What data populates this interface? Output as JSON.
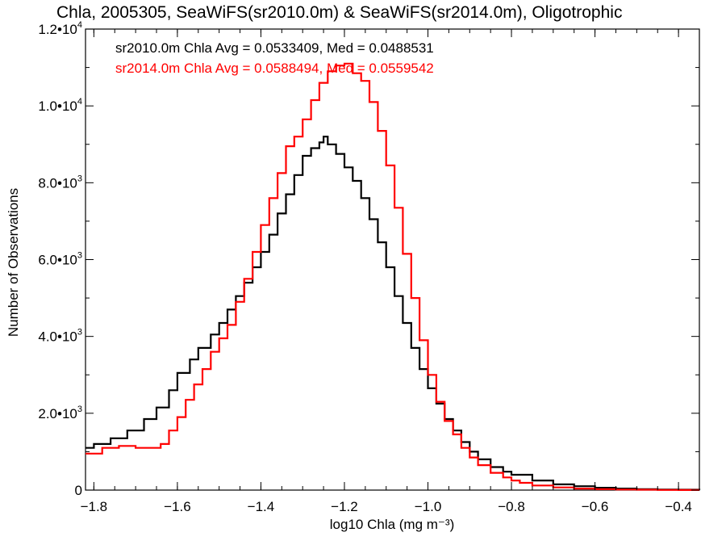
{
  "chart_data": {
    "type": "line",
    "title": "Chla, 2005305, SeaWiFS(sr2010.0m) & SeaWiFS(sr2014.0m), Oligotrophic",
    "xlabel": "log10 Chla (mg m⁻³)",
    "ylabel": "Number of Observations",
    "xlim": [
      -1.82,
      -0.35
    ],
    "ylim": [
      0,
      12000
    ],
    "grid": false,
    "x_ticks": [
      -1.8,
      -1.6,
      -1.4,
      -1.2,
      -1.0,
      -0.8,
      -0.6,
      -0.4
    ],
    "x_tick_labels": [
      "−1.8",
      "−1.6",
      "−1.4",
      "−1.2",
      "−1.0",
      "−0.8",
      "−0.6",
      "−0.4"
    ],
    "y_ticks": [
      0,
      2000,
      4000,
      6000,
      8000,
      10000,
      12000
    ],
    "y_tick_labels": [
      {
        "base": "0",
        "exp": ""
      },
      {
        "base": "2.0•1",
        "exp": ""
      },
      {
        "base": "4.0•1",
        "exp": ""
      },
      {
        "base": "6.0•1",
        "exp": ""
      },
      {
        "base": "8.0•1",
        "exp": ""
      },
      {
        "base": "1.0•1",
        "exp": ""
      },
      {
        "base": "1.2•1",
        "exp": ""
      }
    ],
    "y_tick_text": [
      "0",
      "2.0•10",
      "4.0•10",
      "6.0•10",
      "8.0•10",
      "1.0•10",
      "1.2•10"
    ],
    "y_tick_exp": [
      "",
      "3",
      "3",
      "3",
      "3",
      "4",
      "4"
    ],
    "annotations": [
      {
        "text": "sr2010.0m Chla Avg = 0.0533409, Med = 0.0488531",
        "color": "#000000"
      },
      {
        "text": "sr2014.0m Chla Avg = 0.0588494, Med = 0.0559542",
        "color": "#ff0000"
      }
    ],
    "series": [
      {
        "color": "#000000",
        "x": [
          -1.82,
          -1.8,
          -1.76,
          -1.72,
          -1.68,
          -1.65,
          -1.62,
          -1.6,
          -1.57,
          -1.55,
          -1.52,
          -1.5,
          -1.48,
          -1.46,
          -1.44,
          -1.42,
          -1.4,
          -1.38,
          -1.36,
          -1.34,
          -1.32,
          -1.3,
          -1.28,
          -1.26,
          -1.25,
          -1.24,
          -1.22,
          -1.2,
          -1.18,
          -1.16,
          -1.14,
          -1.12,
          -1.1,
          -1.08,
          -1.06,
          -1.04,
          -1.02,
          -1.0,
          -0.98,
          -0.96,
          -0.94,
          -0.92,
          -0.9,
          -0.88,
          -0.85,
          -0.82,
          -0.8,
          -0.75,
          -0.7,
          -0.65,
          -0.6,
          -0.55,
          -0.5,
          -0.45,
          -0.4,
          -0.35
        ],
        "values": [
          1100,
          1200,
          1350,
          1550,
          1850,
          2150,
          2600,
          3050,
          3400,
          3700,
          4050,
          4350,
          4700,
          5050,
          5400,
          5800,
          6200,
          6650,
          7200,
          7700,
          8200,
          8700,
          8900,
          9050,
          9200,
          9000,
          8750,
          8400,
          8050,
          7600,
          7050,
          6450,
          5800,
          5050,
          4350,
          3700,
          3150,
          2650,
          2250,
          1850,
          1550,
          1250,
          1000,
          800,
          600,
          480,
          400,
          250,
          150,
          100,
          60,
          40,
          25,
          15,
          10,
          5
        ]
      },
      {
        "color": "#ff0000",
        "x": [
          -1.82,
          -1.78,
          -1.74,
          -1.7,
          -1.67,
          -1.64,
          -1.62,
          -1.6,
          -1.58,
          -1.56,
          -1.54,
          -1.52,
          -1.5,
          -1.48,
          -1.46,
          -1.44,
          -1.42,
          -1.4,
          -1.38,
          -1.36,
          -1.34,
          -1.32,
          -1.3,
          -1.28,
          -1.26,
          -1.24,
          -1.22,
          -1.2,
          -1.18,
          -1.16,
          -1.14,
          -1.12,
          -1.1,
          -1.08,
          -1.06,
          -1.04,
          -1.02,
          -1.0,
          -0.98,
          -0.96,
          -0.94,
          -0.92,
          -0.9,
          -0.88,
          -0.85,
          -0.82,
          -0.8,
          -0.78,
          -0.75,
          -0.7,
          -0.65,
          -0.6,
          -0.55,
          -0.5,
          -0.45,
          -0.4,
          -0.35
        ],
        "values": [
          950,
          1100,
          1150,
          1100,
          1100,
          1200,
          1550,
          1900,
          2350,
          2750,
          3150,
          3600,
          3950,
          4300,
          4900,
          5500,
          6200,
          6900,
          7600,
          8250,
          8950,
          9200,
          9650,
          10150,
          10600,
          10900,
          11050,
          11100,
          10850,
          10650,
          10100,
          9350,
          8450,
          7350,
          6150,
          5000,
          3900,
          3000,
          2300,
          1800,
          1450,
          1100,
          850,
          650,
          450,
          330,
          250,
          190,
          120,
          70,
          40,
          25,
          15,
          10,
          5,
          3,
          2
        ]
      }
    ]
  }
}
